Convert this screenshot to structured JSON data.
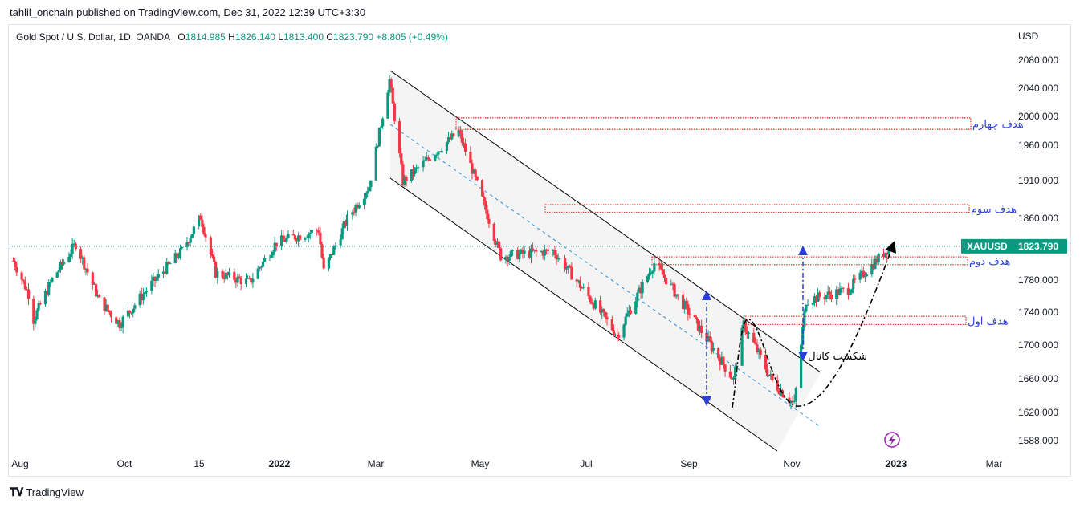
{
  "publisher": "tahlil_onchain published on TradingView.com, Dec 31, 2022 12:39 UTC+3:30",
  "legend": {
    "symbol": "Gold Spot / U.S. Dollar, 1D, OANDA",
    "open_label": "O",
    "open": "1814.985",
    "high_label": "H",
    "high": "1826.140",
    "low_label": "L",
    "low": "1813.400",
    "close_label": "C",
    "close": "1823.790",
    "change": "+8.805 (+0.49%)"
  },
  "footer": {
    "brand": "TradingView"
  },
  "colors": {
    "up": "#089981",
    "down": "#f23645",
    "target": "#e53935",
    "arrow": "#2a3fd6",
    "channel": "#000000",
    "midline": "#2a8fe0"
  },
  "icons": [
    "tradingview-logo-icon",
    "lightning-icon"
  ],
  "chart_data": {
    "type": "candlestick",
    "currency": "USD",
    "price_axis_ticks": [
      "2080.000",
      "2040.000",
      "2000.000",
      "1960.000",
      "1910.000",
      "1860.000",
      "1780.000",
      "1740.000",
      "1700.000",
      "1660.000",
      "1620.000",
      "1588.000"
    ],
    "time_axis_ticks": [
      "Aug",
      "Oct",
      "15",
      "2022",
      "Mar",
      "May",
      "Jul",
      "Sep",
      "Nov",
      "2023",
      "Mar"
    ],
    "last_price": {
      "symbol": "XAUUSD",
      "value": "1823.790"
    },
    "close_path": [
      {
        "date": "2021-07-28",
        "close": 1805
      },
      {
        "date": "2021-08-06",
        "close": 1763
      },
      {
        "date": "2021-08-09",
        "close": 1731
      },
      {
        "date": "2021-08-20",
        "close": 1781
      },
      {
        "date": "2021-09-03",
        "close": 1827
      },
      {
        "date": "2021-09-17",
        "close": 1754
      },
      {
        "date": "2021-09-29",
        "close": 1726
      },
      {
        "date": "2021-10-15",
        "close": 1768
      },
      {
        "date": "2021-11-05",
        "close": 1818
      },
      {
        "date": "2021-11-16",
        "close": 1862
      },
      {
        "date": "2021-11-25",
        "close": 1789
      },
      {
        "date": "2021-12-15",
        "close": 1777
      },
      {
        "date": "2021-12-31",
        "close": 1829
      },
      {
        "date": "2022-01-25",
        "close": 1845
      },
      {
        "date": "2022-01-28",
        "close": 1791
      },
      {
        "date": "2022-02-11",
        "close": 1859
      },
      {
        "date": "2022-02-24",
        "close": 1903
      },
      {
        "date": "2022-03-08",
        "close": 2052
      },
      {
        "date": "2022-03-16",
        "close": 1909
      },
      {
        "date": "2022-04-18",
        "close": 1979
      },
      {
        "date": "2022-05-13",
        "close": 1811
      },
      {
        "date": "2022-06-13",
        "close": 1818
      },
      {
        "date": "2022-07-21",
        "close": 1712
      },
      {
        "date": "2022-08-12",
        "close": 1802
      },
      {
        "date": "2022-09-28",
        "close": 1659
      },
      {
        "date": "2022-10-04",
        "close": 1725
      },
      {
        "date": "2022-10-21",
        "close": 1657
      },
      {
        "date": "2022-11-03",
        "close": 1629
      },
      {
        "date": "2022-11-10",
        "close": 1755
      },
      {
        "date": "2022-12-05",
        "close": 1768
      },
      {
        "date": "2022-12-30",
        "close": 1823.79
      }
    ],
    "annotations": {
      "targets": [
        {
          "label": "هدف اول",
          "low": 1725,
          "high": 1735
        },
        {
          "label": "هدف دوم",
          "low": 1800,
          "high": 1810
        },
        {
          "label": "هدف سوم",
          "low": 1868,
          "high": 1878
        },
        {
          "label": "هدف چهارم",
          "low": 1982,
          "high": 1998
        }
      ],
      "breakout_label": "شکست کانال"
    }
  }
}
